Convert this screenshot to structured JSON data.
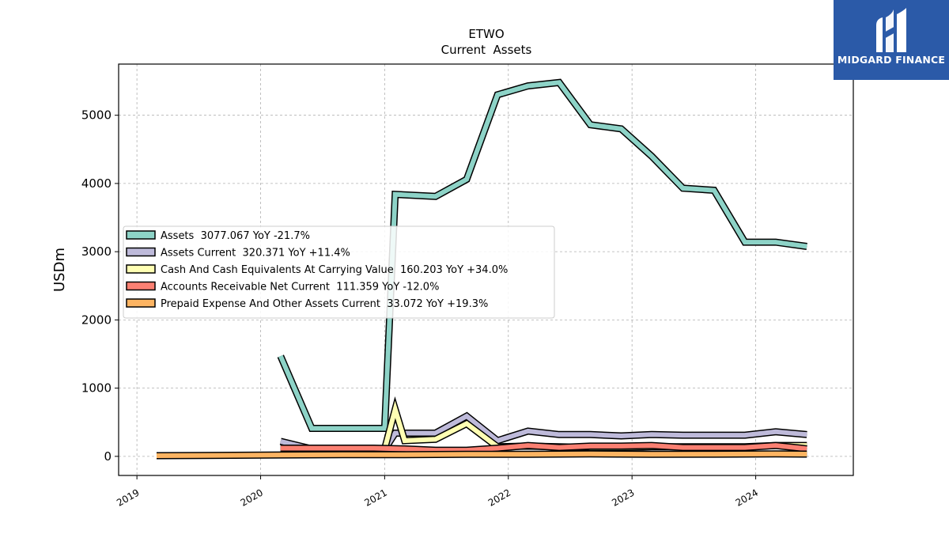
{
  "logo": {
    "text": "MIDGARD FINANCE",
    "icon": "midgard-logo-icon",
    "background": "#2b5aa8"
  },
  "chart_data": {
    "type": "line",
    "title": "ETWO",
    "subtitle": "Current  Assets",
    "xlabel": "",
    "ylabel": "USDm",
    "xlim": [
      "2018-11-08",
      "2024-10-15"
    ],
    "ylim": [
      -280,
      5750
    ],
    "x_ticks": [
      "2019",
      "2020",
      "2021",
      "2022",
      "2023",
      "2024"
    ],
    "y_ticks": [
      0,
      1000,
      2000,
      3000,
      4000,
      5000
    ],
    "y_tick_labels": [
      "0",
      "1000",
      "2000",
      "3000",
      "4000",
      "5000"
    ],
    "grid": true,
    "legend_position": "center-left",
    "series": [
      {
        "name": "Assets",
        "legend_label": "Assets  3077.067 YoY -21.7%",
        "color": "#8dd3c7",
        "x": [
          "2020-02-29",
          "2020-05-31",
          "2020-08-31",
          "2020-11-30",
          "2021-01-01",
          "2021-02-01",
          "2021-05-31",
          "2021-08-31",
          "2021-11-30",
          "2022-02-28",
          "2022-05-31",
          "2022-08-31",
          "2022-11-30",
          "2023-02-28",
          "2023-05-31",
          "2023-08-31",
          "2023-11-30",
          "2024-02-29",
          "2024-05-31"
        ],
        "y": [
          1470,
          410,
          410,
          410,
          410,
          3840,
          3810,
          4060,
          5300,
          5430,
          5480,
          4860,
          4800,
          4400,
          3930,
          3900,
          3140,
          3140,
          3077
        ]
      },
      {
        "name": "Assets Current",
        "legend_label": "Assets Current  320.371 YoY +11.4%",
        "color": "#bebada",
        "x": [
          "2020-02-29",
          "2020-05-31",
          "2020-08-31",
          "2020-11-30",
          "2021-01-01",
          "2021-02-01",
          "2021-05-31",
          "2021-08-31",
          "2021-11-30",
          "2022-02-28",
          "2022-05-31",
          "2022-08-31",
          "2022-11-30",
          "2023-02-28",
          "2023-05-31",
          "2023-08-31",
          "2023-11-30",
          "2024-02-29",
          "2024-05-31"
        ],
        "y": [
          220,
          110,
          100,
          100,
          100,
          340,
          340,
          590,
          230,
          370,
          320,
          320,
          300,
          320,
          310,
          310,
          310,
          360,
          320
        ]
      },
      {
        "name": "Cash And Cash Equivalents At Carrying Value",
        "legend_label": "Cash And Cash Equivalents At Carrying Value  160.203 YoY +34.0%",
        "color": "#ffffb3",
        "x": [
          "2020-02-29",
          "2020-05-31",
          "2020-08-31",
          "2020-11-30",
          "2021-01-01",
          "2021-02-01",
          "2021-03-01",
          "2021-05-31",
          "2021-08-31",
          "2021-11-30",
          "2022-02-28",
          "2022-05-31",
          "2022-08-31",
          "2022-11-30",
          "2023-02-28",
          "2023-05-31",
          "2023-08-31",
          "2023-11-30",
          "2024-02-29",
          "2024-05-31"
        ],
        "y": [
          120,
          110,
          100,
          100,
          110,
          690,
          230,
          250,
          480,
          140,
          150,
          140,
          130,
          130,
          140,
          140,
          140,
          140,
          160,
          160
        ]
      },
      {
        "name": "Accounts Receivable Net Current",
        "legend_label": "Accounts Receivable Net Current  111.359 YoY -12.0%",
        "color": "#fb8072",
        "x": [
          "2020-02-29",
          "2020-05-31",
          "2020-08-31",
          "2020-11-30",
          "2021-02-28",
          "2021-05-31",
          "2021-08-31",
          "2021-11-30",
          "2022-02-28",
          "2022-05-31",
          "2022-08-31",
          "2022-11-30",
          "2023-02-28",
          "2023-05-31",
          "2023-08-31",
          "2023-11-30",
          "2024-02-29",
          "2024-05-31"
        ],
        "y": [
          120,
          120,
          120,
          120,
          110,
          90,
          90,
          120,
          160,
          130,
          150,
          150,
          160,
          130,
          130,
          130,
          160,
          111
        ]
      },
      {
        "name": "Prepaid Expense And Other Assets Current",
        "legend_label": "Prepaid Expense And Other Assets Current  33.072 YoY +19.3%",
        "color": "#fdb462",
        "x": [
          "2019-02-28",
          "2019-08-31",
          "2020-02-29",
          "2020-08-31",
          "2021-02-28",
          "2021-08-31",
          "2022-02-28",
          "2022-08-31",
          "2023-02-28",
          "2023-08-31",
          "2024-02-29",
          "2024-05-31"
        ],
        "y": [
          10,
          15,
          20,
          25,
          25,
          30,
          30,
          35,
          30,
          32,
          35,
          33
        ]
      }
    ]
  }
}
